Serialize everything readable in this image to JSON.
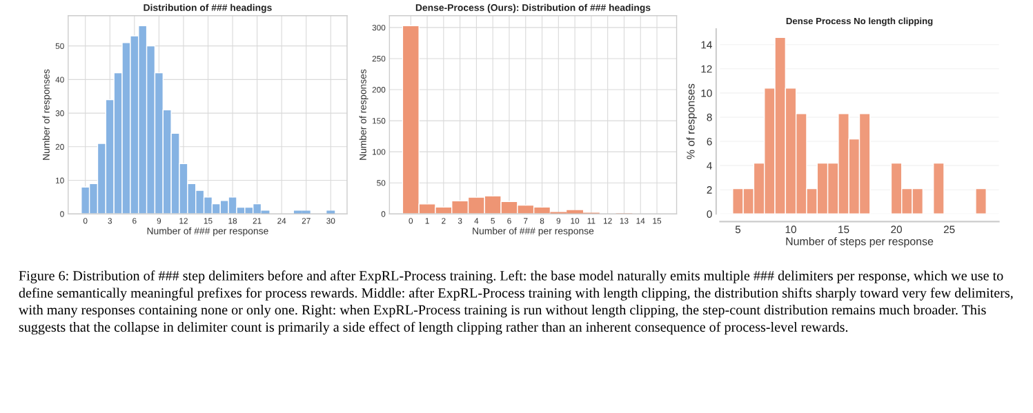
{
  "chart_data": [
    {
      "type": "histogram",
      "title": "Distribution of ### headings",
      "xlabel": "Number of ### per response",
      "ylabel": "Number of responses",
      "color": "#86b3e3",
      "bins": [
        -0.5,
        0.5,
        1.5,
        2.5,
        3.5,
        4.5,
        5.5,
        6.5,
        7.5,
        8.5,
        9.5,
        10.5,
        11.5,
        12.5,
        13.5,
        14.5,
        15.5,
        16.5,
        17.5,
        18.5,
        19.5,
        20.5,
        21.5,
        22.5,
        23.5,
        24.5,
        25.5,
        26.5,
        27.5,
        28.5,
        29.5,
        30.5
      ],
      "values": [
        8,
        9,
        21,
        34,
        42,
        51,
        53,
        56,
        50,
        42,
        31,
        24,
        15,
        9,
        7,
        5,
        3,
        4,
        5,
        2,
        2,
        3,
        1,
        0,
        0,
        0,
        1,
        1,
        0,
        0,
        1
      ],
      "xlim": [
        -2.1,
        32
      ],
      "xticks": [
        0,
        3,
        6,
        9,
        12,
        15,
        18,
        21,
        24,
        27,
        30
      ],
      "ylim": [
        0,
        59
      ],
      "yticks": [
        0,
        10,
        20,
        30,
        40,
        50
      ],
      "grid": true,
      "annotations": [
        "Figure 6: Distribution of ### step delimiters before and after ExpRL-Process training. Left: the base model naturally emits multiple ### delimiters per response, which we use to define semantically meaningful prefixes for process rewards. Middle: after ExpRL-Process training with length clipping, the distribution shifts sharply toward very few delimiters, with many responses containing none or only one. Right: when ExpRL-Process training is run without length clipping, the step-count distribution remains much broader. This suggests that the collapse in delimiter count is primarily a side effect of length clipping rather than an inherent consequence of process-level rewards."
      ]
    },
    {
      "type": "histogram",
      "title": "Dense-Process (Ours): Distribution of ### headings",
      "xlabel": "Number of ### per response",
      "ylabel": "Number of responses",
      "color": "#ee9574",
      "bins": [
        -0.5,
        0.5,
        1.5,
        2.5,
        3.5,
        4.5,
        5.5,
        6.5,
        7.5,
        8.5,
        9.5,
        10.5,
        11.5,
        12.5,
        13.5,
        14.5,
        15.5
      ],
      "values": [
        303,
        16,
        11,
        21,
        27,
        29,
        20,
        14,
        11,
        3,
        6,
        2,
        0,
        1,
        0,
        0
      ],
      "xlim": [
        -1.3,
        16.2
      ],
      "xticks": [
        0,
        1,
        2,
        3,
        4,
        5,
        6,
        7,
        8,
        9,
        10,
        11,
        12,
        13,
        14,
        15
      ],
      "ylim": [
        0,
        319
      ],
      "yticks": [
        0,
        50,
        100,
        150,
        200,
        250,
        300
      ],
      "grid": true
    },
    {
      "type": "histogram",
      "title": "Dense Process No length clipping",
      "xlabel": "Number of steps per response",
      "ylabel": "% of responses",
      "color": "#ef9a7b",
      "bins": [
        4.5,
        5.5,
        6.5,
        7.5,
        8.5,
        9.5,
        10.5,
        11.5,
        12.5,
        13.5,
        14.5,
        15.5,
        16.5,
        17.5,
        18.5,
        19.5,
        20.5,
        21.5,
        22.5,
        23.5,
        24.5,
        25.5,
        26.5,
        27.5,
        28.5
      ],
      "values": [
        2.1,
        2.1,
        4.2,
        10.4,
        14.6,
        10.4,
        8.3,
        2.1,
        4.2,
        4.2,
        8.3,
        6.2,
        8.3,
        0,
        0,
        4.2,
        2.1,
        2.1,
        0,
        4.2,
        0,
        0,
        0,
        2.1
      ],
      "xlim": [
        3.3,
        29.7
      ],
      "xticks": [
        5,
        10,
        15,
        20,
        25
      ],
      "ylim": [
        0,
        15.3
      ],
      "yticks": [
        0,
        2,
        4,
        6,
        8,
        10,
        12,
        14
      ],
      "grid": "y"
    }
  ]
}
